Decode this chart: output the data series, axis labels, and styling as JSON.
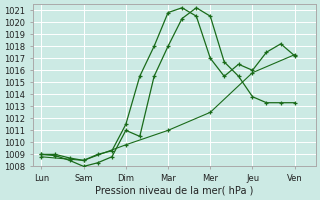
{
  "xlabel": "Pression niveau de la mer( hPa )",
  "xtick_labels": [
    "Lun",
    "Sam",
    "Dim",
    "Mar",
    "Mer",
    "Jeu",
    "Ven"
  ],
  "xtick_positions": [
    0,
    1,
    2,
    3,
    4,
    5,
    6
  ],
  "ylim": [
    1008,
    1021.5
  ],
  "ytick_min": 1008,
  "ytick_max": 1021,
  "background_color": "#cceae4",
  "grid_color": "#ffffff",
  "line_color": "#1a6b1a",
  "line1_x": [
    0,
    0.33,
    0.67,
    1.0,
    1.33,
    1.67,
    2.0,
    2.33,
    2.67,
    3.0,
    3.33,
    3.67,
    4.0,
    4.33,
    4.67,
    5.0,
    5.33,
    5.67,
    6.0
  ],
  "line1_y": [
    1009.0,
    1008.9,
    1008.5,
    1008.0,
    1008.3,
    1008.8,
    1011.0,
    1010.5,
    1015.5,
    1018.0,
    1020.3,
    1021.2,
    1020.5,
    1016.7,
    1015.5,
    1013.8,
    1013.3,
    1013.3,
    1013.3
  ],
  "line2_x": [
    0,
    0.33,
    0.67,
    1.0,
    1.33,
    1.67,
    2.0,
    2.33,
    2.67,
    3.0,
    3.33,
    3.67,
    4.0,
    4.33,
    4.67,
    5.0,
    5.33,
    5.67,
    6.0
  ],
  "line2_y": [
    1009.0,
    1009.0,
    1008.7,
    1008.5,
    1009.0,
    1009.3,
    1011.5,
    1015.5,
    1018.0,
    1020.8,
    1021.2,
    1020.5,
    1017.0,
    1015.5,
    1016.5,
    1016.0,
    1017.5,
    1018.2,
    1017.2
  ],
  "line3_x": [
    0,
    1,
    2,
    3,
    4,
    5,
    6
  ],
  "line3_y": [
    1008.8,
    1008.5,
    1009.8,
    1011.0,
    1012.5,
    1015.8,
    1017.3
  ]
}
